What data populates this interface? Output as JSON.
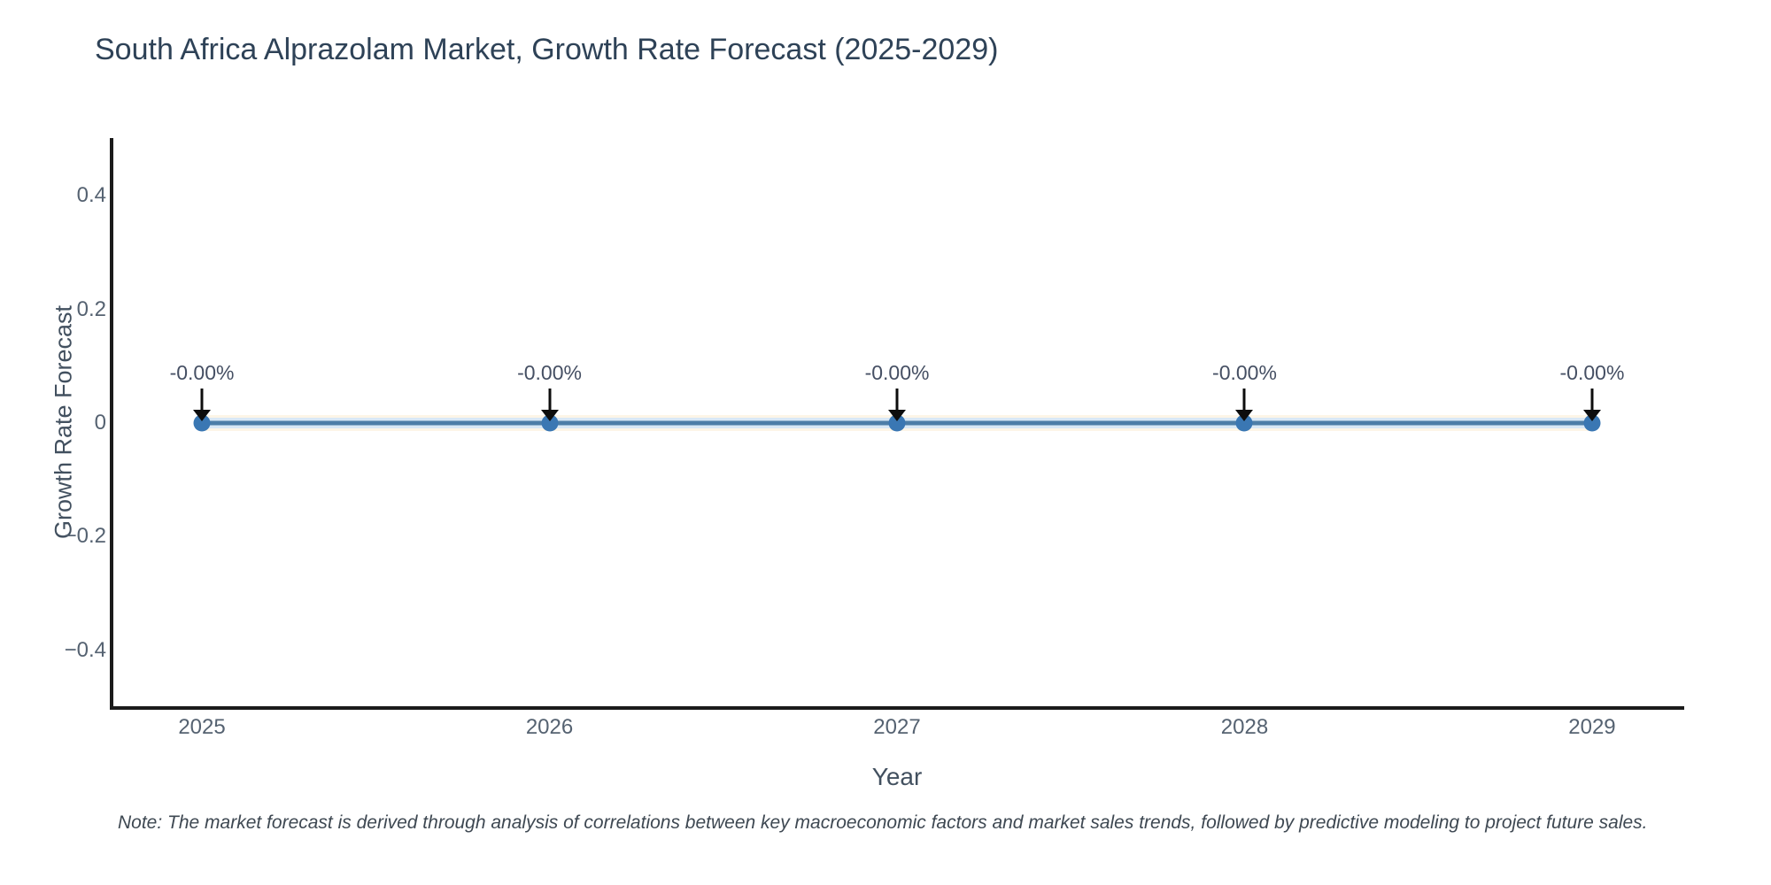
{
  "title": "South Africa Alprazolam Market, Growth Rate Forecast (2025-2029)",
  "note": "Note: The market forecast is derived through analysis of correlations between key macroeconomic factors and market sales trends, followed by predictive modeling to project future sales.",
  "chart_data": {
    "type": "line",
    "title": "South Africa Alprazolam Market, Growth Rate Forecast (2025-2029)",
    "xlabel": "Year",
    "ylabel": "Growth Rate Forecast",
    "x": [
      2025,
      2026,
      2027,
      2028,
      2029
    ],
    "series": [
      {
        "name": "Growth Rate Forecast",
        "values": [
          0,
          0,
          0,
          0,
          0
        ]
      }
    ],
    "point_labels": [
      "-0.00%",
      "-0.00%",
      "-0.00%",
      "-0.00%",
      "-0.00%"
    ],
    "xticks": [
      "2025",
      "2026",
      "2027",
      "2028",
      "2029"
    ],
    "yticks": [
      "0.4",
      "0.2",
      "0",
      "−0.2",
      "−0.4"
    ],
    "ytick_values": [
      0.4,
      0.2,
      0,
      -0.2,
      -0.4
    ],
    "xlim": [
      2024.74,
      2029.26
    ],
    "ylim": [
      -0.5,
      0.5
    ],
    "grid": false,
    "legend_position": "none",
    "annotation_style": "black-down-arrow",
    "colors": {
      "line": "#4d7ea8",
      "marker": "#3a77b3",
      "ci_band": "#d8e8f6",
      "outer_band": "#fdf5e7",
      "title_text": "#2e4257",
      "axis_label_text": "#42505f",
      "tick_text": "#556271",
      "annotation_text": "#454f63",
      "arrow": "#0d0d0d",
      "spine": "#1b1b1b"
    }
  }
}
